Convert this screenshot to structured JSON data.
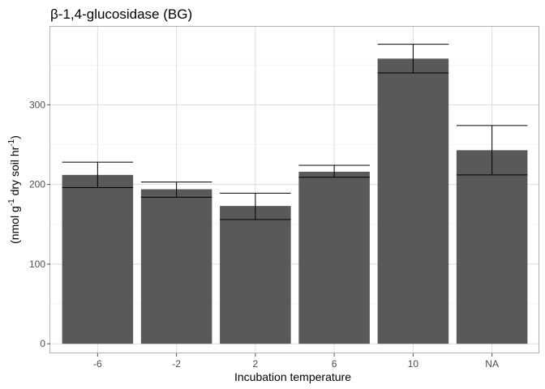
{
  "chart_data": {
    "type": "bar",
    "title": "β-1,4-glucosidase (BG)",
    "xlabel": "Incubation temperature",
    "ylabel": {
      "parts": [
        "(nmol g",
        "-1",
        " dry soil hr",
        "-1",
        ")"
      ]
    },
    "categories": [
      "-6",
      "-2",
      "2",
      "6",
      "10",
      "NA"
    ],
    "values": [
      212,
      194,
      173,
      216,
      358,
      243
    ],
    "error_low": [
      196,
      184,
      156,
      209,
      340,
      212
    ],
    "error_high": [
      228,
      203,
      189,
      224,
      376,
      274
    ],
    "ylim": [
      -12,
      398
    ],
    "yticks": [
      0,
      100,
      200,
      300
    ],
    "ytick_labels": [
      "0",
      "100",
      "200",
      "300"
    ],
    "grid": true,
    "colors": {
      "bar": "#595959",
      "error_bar": "#000000",
      "grid": "#dcdcdc",
      "panel_border": "#b3b3b3"
    }
  }
}
